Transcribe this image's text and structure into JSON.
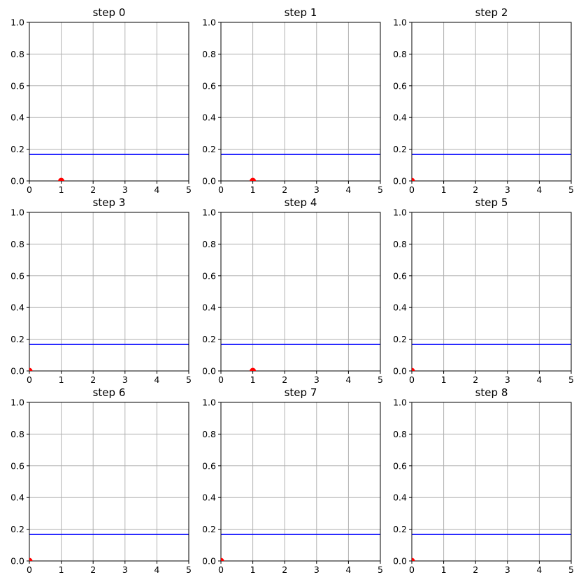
{
  "figure": {
    "columns": 3,
    "rows": 3
  },
  "style": {
    "grid_color": "#b0b0b0",
    "line_color": "#0000ff",
    "point_color": "#ff0000",
    "axis_color": "#000000"
  },
  "chart_data": [
    {
      "type": "scatter",
      "title": "step 0",
      "xlim": [
        0,
        5
      ],
      "ylim": [
        0,
        1
      ],
      "xticks": [
        "0",
        "1",
        "2",
        "3",
        "4",
        "5"
      ],
      "yticks": [
        "0.0",
        "0.2",
        "0.4",
        "0.6",
        "0.8",
        "1.0"
      ],
      "grid": true,
      "hline_y": 0.167,
      "points": [
        {
          "x": 1,
          "y": 0
        }
      ]
    },
    {
      "type": "scatter",
      "title": "step 1",
      "xlim": [
        0,
        5
      ],
      "ylim": [
        0,
        1
      ],
      "xticks": [
        "0",
        "1",
        "2",
        "3",
        "4",
        "5"
      ],
      "yticks": [
        "0.0",
        "0.2",
        "0.4",
        "0.6",
        "0.8",
        "1.0"
      ],
      "grid": true,
      "hline_y": 0.167,
      "points": [
        {
          "x": 1,
          "y": 0
        }
      ]
    },
    {
      "type": "scatter",
      "title": "step 2",
      "xlim": [
        0,
        5
      ],
      "ylim": [
        0,
        1
      ],
      "xticks": [
        "0",
        "1",
        "2",
        "3",
        "4",
        "5"
      ],
      "yticks": [
        "0.0",
        "0.2",
        "0.4",
        "0.6",
        "0.8",
        "1.0"
      ],
      "grid": true,
      "hline_y": 0.167,
      "points": [
        {
          "x": 0,
          "y": 0
        }
      ]
    },
    {
      "type": "scatter",
      "title": "step 3",
      "xlim": [
        0,
        5
      ],
      "ylim": [
        0,
        1
      ],
      "xticks": [
        "0",
        "1",
        "2",
        "3",
        "4",
        "5"
      ],
      "yticks": [
        "0.0",
        "0.2",
        "0.4",
        "0.6",
        "0.8",
        "1.0"
      ],
      "grid": true,
      "hline_y": 0.167,
      "points": [
        {
          "x": 0,
          "y": 0
        }
      ]
    },
    {
      "type": "scatter",
      "title": "step 4",
      "xlim": [
        0,
        5
      ],
      "ylim": [
        0,
        1
      ],
      "xticks": [
        "0",
        "1",
        "2",
        "3",
        "4",
        "5"
      ],
      "yticks": [
        "0.0",
        "0.2",
        "0.4",
        "0.6",
        "0.8",
        "1.0"
      ],
      "grid": true,
      "hline_y": 0.167,
      "points": [
        {
          "x": 1,
          "y": 0
        }
      ]
    },
    {
      "type": "scatter",
      "title": "step 5",
      "xlim": [
        0,
        5
      ],
      "ylim": [
        0,
        1
      ],
      "xticks": [
        "0",
        "1",
        "2",
        "3",
        "4",
        "5"
      ],
      "yticks": [
        "0.0",
        "0.2",
        "0.4",
        "0.6",
        "0.8",
        "1.0"
      ],
      "grid": true,
      "hline_y": 0.167,
      "points": [
        {
          "x": 0,
          "y": 0
        }
      ]
    },
    {
      "type": "scatter",
      "title": "step 6",
      "xlim": [
        0,
        5
      ],
      "ylim": [
        0,
        1
      ],
      "xticks": [
        "0",
        "1",
        "2",
        "3",
        "4",
        "5"
      ],
      "yticks": [
        "0.0",
        "0.2",
        "0.4",
        "0.6",
        "0.8",
        "1.0"
      ],
      "grid": true,
      "hline_y": 0.167,
      "points": [
        {
          "x": 0,
          "y": 0
        }
      ]
    },
    {
      "type": "scatter",
      "title": "step 7",
      "xlim": [
        0,
        5
      ],
      "ylim": [
        0,
        1
      ],
      "xticks": [
        "0",
        "1",
        "2",
        "3",
        "4",
        "5"
      ],
      "yticks": [
        "0.0",
        "0.2",
        "0.4",
        "0.6",
        "0.8",
        "1.0"
      ],
      "grid": true,
      "hline_y": 0.167,
      "points": [
        {
          "x": 0,
          "y": 0
        }
      ]
    },
    {
      "type": "scatter",
      "title": "step 8",
      "xlim": [
        0,
        5
      ],
      "ylim": [
        0,
        1
      ],
      "xticks": [
        "0",
        "1",
        "2",
        "3",
        "4",
        "5"
      ],
      "yticks": [
        "0.0",
        "0.2",
        "0.4",
        "0.6",
        "0.8",
        "1.0"
      ],
      "grid": true,
      "hline_y": 0.167,
      "points": [
        {
          "x": 0,
          "y": 0
        }
      ]
    }
  ]
}
